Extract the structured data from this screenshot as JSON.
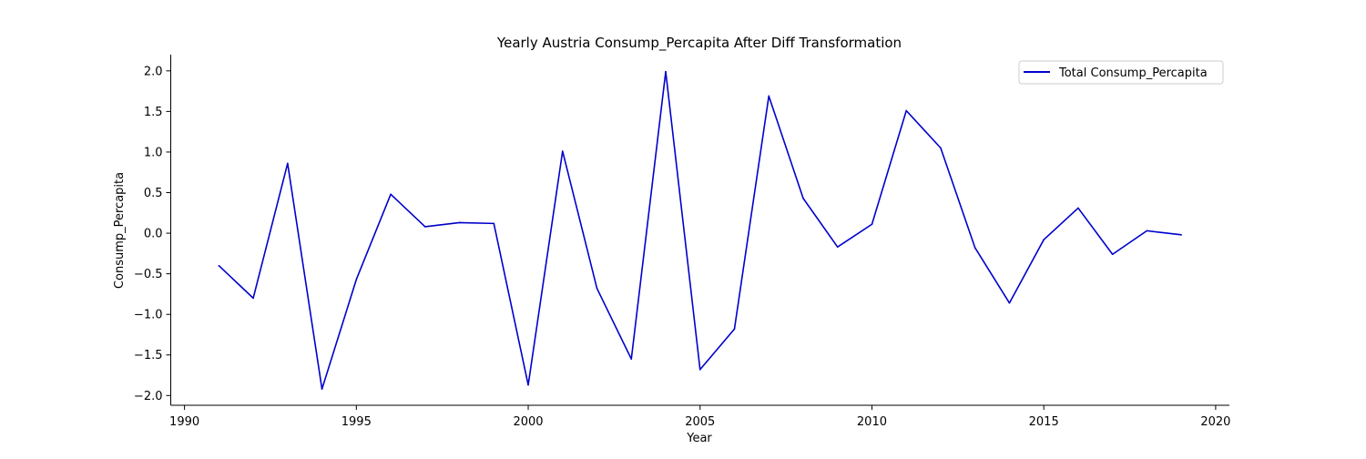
{
  "chart_data": {
    "type": "line",
    "title": "Yearly Austria Consump_Percapita After Diff Transformation",
    "xlabel": "Year",
    "ylabel": "Consump_Percapita",
    "xlim": [
      1989.6,
      2020.4
    ],
    "ylim": [
      -2.12,
      2.2
    ],
    "x_ticks": [
      1990,
      1995,
      2000,
      2005,
      2010,
      2015,
      2020
    ],
    "y_ticks": [
      -2.0,
      -1.5,
      -1.0,
      -0.5,
      0.0,
      0.5,
      1.0,
      1.5,
      2.0
    ],
    "grid": false,
    "legend_position": "top-right",
    "series": [
      {
        "name": "Total Consump_Percapita",
        "color": "#0000cc",
        "x": [
          1991,
          1992,
          1993,
          1994,
          1995,
          1996,
          1997,
          1998,
          1999,
          2000,
          2001,
          2002,
          2003,
          2004,
          2005,
          2006,
          2007,
          2008,
          2009,
          2010,
          2011,
          2012,
          2013,
          2014,
          2015,
          2016,
          2017,
          2018,
          2019
        ],
        "y": [
          -0.4,
          -0.8,
          0.86,
          -1.92,
          -0.57,
          0.48,
          0.08,
          0.13,
          0.12,
          -1.87,
          1.01,
          -0.68,
          -1.55,
          1.99,
          -1.68,
          -1.18,
          1.69,
          0.43,
          -0.17,
          0.11,
          1.51,
          1.05,
          -0.18,
          -0.86,
          -0.08,
          0.31,
          -0.26,
          0.03,
          -0.02
        ]
      }
    ]
  }
}
